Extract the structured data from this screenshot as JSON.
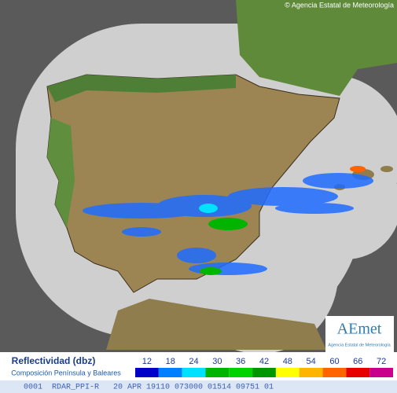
{
  "header": {
    "copyright": "© Agencia Estatal de Meteorología"
  },
  "logo": {
    "brand": "AEmet",
    "subtitle": "Agencia Estatal de Meteorología"
  },
  "legend": {
    "title": "Reflectividad (dbz)",
    "subtitle": "Composición Península y Baleares",
    "items": [
      {
        "value": 12,
        "color": "#0000c8"
      },
      {
        "value": 18,
        "color": "#0080ff"
      },
      {
        "value": 24,
        "color": "#00e0ff"
      },
      {
        "value": 30,
        "color": "#00b400"
      },
      {
        "value": 36,
        "color": "#00d200"
      },
      {
        "value": 42,
        "color": "#009600"
      },
      {
        "value": 48,
        "color": "#ffff00"
      },
      {
        "value": 54,
        "color": "#ffb400"
      },
      {
        "value": 60,
        "color": "#ff6400"
      },
      {
        "value": 66,
        "color": "#e60000"
      },
      {
        "value": 72,
        "color": "#c8008c"
      }
    ]
  },
  "footer": {
    "code": "0001  RDAR_PPI-R   20 APR 19110 073000 01514 09751 01"
  }
}
